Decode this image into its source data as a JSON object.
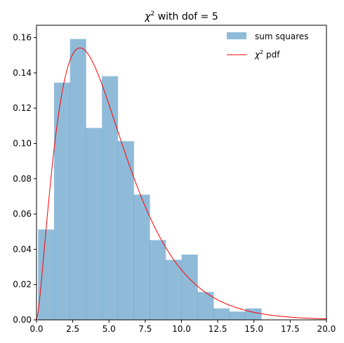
{
  "chart_data": {
    "type": "bar",
    "title": "χ² with dof = 5",
    "xlabel": "",
    "ylabel": "",
    "xlim": [
      0,
      20
    ],
    "ylim": [
      0,
      0.167
    ],
    "grid": false,
    "legend_placement": "top-right",
    "x_ticks": [
      "0.0",
      "2.5",
      "5.0",
      "7.5",
      "10.0",
      "12.5",
      "15.0",
      "17.5",
      "20.0"
    ],
    "y_ticks": [
      "0.00",
      "0.02",
      "0.04",
      "0.06",
      "0.08",
      "0.10",
      "0.12",
      "0.14",
      "0.16"
    ],
    "histogram": {
      "name": "sum squares",
      "color": "#1f77b4",
      "opacity": 0.5,
      "bin_edges": [
        0.11,
        1.21,
        2.31,
        3.41,
        4.51,
        5.61,
        6.71,
        7.81,
        8.91,
        10.01,
        11.11,
        12.21,
        13.31,
        14.41,
        15.51
      ],
      "densities": [
        0.0512,
        0.1345,
        0.1592,
        0.1088,
        0.1381,
        0.1013,
        0.071,
        0.0452,
        0.034,
        0.037,
        0.0158,
        0.0065,
        0.0047,
        0.0065
      ]
    },
    "pdf_line": {
      "name": "χ² pdf",
      "color": "#ff0000",
      "dof": 5,
      "x_range": [
        0,
        20
      ]
    }
  },
  "legend": {
    "hist_label": "sum squares",
    "pdf_label_prefix": "χ",
    "pdf_label_sup": "2",
    "pdf_label_suffix": " pdf"
  },
  "title": {
    "prefix": "χ",
    "sup": "2",
    "suffix": " with dof = 5"
  }
}
